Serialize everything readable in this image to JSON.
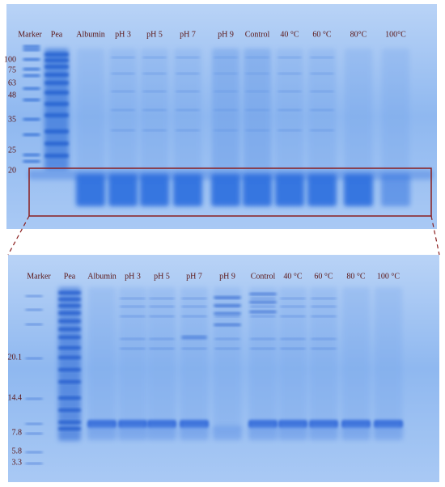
{
  "top_panel": {
    "lanes": [
      "Marker",
      "Pea",
      "Albumin",
      "pH 3",
      "pH 5",
      "pH 7",
      "pH 9",
      "Control",
      "40 °C",
      "60 °C",
      "80°C",
      "100°C"
    ],
    "marker_sizes": [
      "100",
      "75",
      "63",
      "48",
      "35",
      "25",
      "20"
    ]
  },
  "bottom_panel": {
    "lanes": [
      "Marker",
      "Pea",
      "Albumin",
      "pH 3",
      "pH 5",
      "pH 7",
      "pH 9",
      "Control",
      "40 °C",
      "60 °C",
      "80 °C",
      "100 °C"
    ],
    "marker_sizes": [
      "20.1",
      "14.4",
      "7.8",
      "5.8",
      "3.3"
    ]
  }
}
